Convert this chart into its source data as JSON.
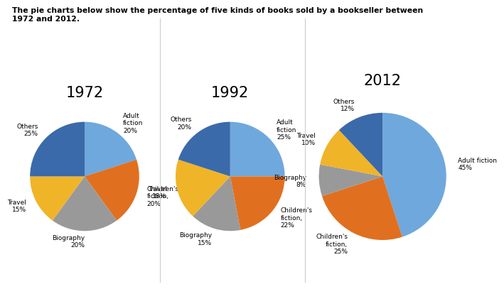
{
  "title": "The pie charts below show the percentage of five kinds of books sold by a bookseller between\n1972 and 2012.",
  "years": [
    "1972",
    "1992",
    "2012"
  ],
  "categories": [
    "Adult fiction",
    "Children's fiction",
    "Biography",
    "Travel",
    "Others"
  ],
  "values": {
    "1972": [
      20,
      20,
      20,
      15,
      25
    ],
    "1992": [
      25,
      22,
      15,
      18,
      20
    ],
    "2012": [
      45,
      25,
      8,
      10,
      12
    ]
  },
  "slice_colors": {
    "Adult fiction": "#6FA8DC",
    "Children's fiction": "#E07020",
    "Biography": "#999999",
    "Travel": "#F0B428",
    "Others": "#3A6AAA"
  },
  "labels": {
    "1972": {
      "Adult fiction": "Adult\nfiction\n20%",
      "Children's fiction": "Children's\nfiction,\n20%",
      "Biography": "Biography\n20%",
      "Travel": "Travel\n15%",
      "Others": "Others\n25%"
    },
    "1992": {
      "Adult fiction": "Adult\nfiction\n25%",
      "Children's fiction": "Children's\nfiction,\n22%",
      "Biography": "Biography\n15%",
      "Travel": "Travel\n18%",
      "Others": "Others\n20%"
    },
    "2012": {
      "Adult fiction": "Adult fiction\n45%",
      "Children's fiction": "Children's\nfiction,\n25%",
      "Biography": "Biography\n8%",
      "Travel": "Travel\n10%",
      "Others": "Others\n12%"
    }
  },
  "start_angles": {
    "1972": 90,
    "1992": 90,
    "2012": 90
  },
  "bg_color": "#FFFFFF",
  "title_fontsize": 7.8,
  "year_fontsize": 15,
  "label_fontsize": 6.5,
  "divider_color": "#CCCCCC"
}
